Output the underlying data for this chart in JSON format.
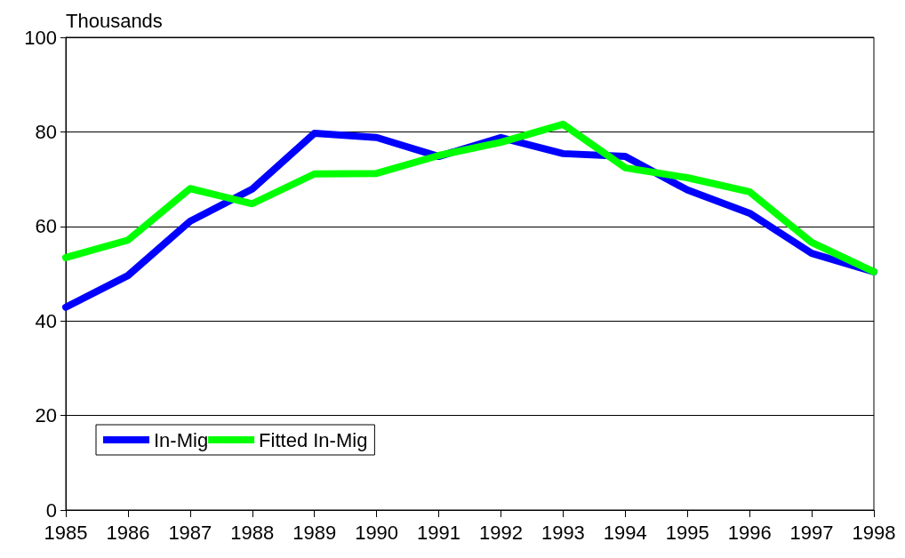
{
  "chart_data": {
    "type": "line",
    "ylabel": "Thousands",
    "categories": [
      "1985",
      "1986",
      "1987",
      "1988",
      "1989",
      "1990",
      "1991",
      "1992",
      "1993",
      "1994",
      "1995",
      "1996",
      "1997",
      "1998"
    ],
    "series": [
      {
        "name": "In-Mig",
        "color": "#0000ff",
        "values": [
          42.9,
          49.6,
          61.1,
          67.9,
          79.7,
          78.8,
          74.8,
          78.8,
          75.4,
          74.8,
          67.7,
          62.8,
          54.3,
          50.4
        ]
      },
      {
        "name": "Fitted In-Mig",
        "color": "#00ff00",
        "values": [
          53.4,
          57.1,
          68.0,
          64.8,
          71.1,
          71.2,
          75.0,
          77.8,
          81.6,
          72.4,
          70.3,
          67.3,
          56.6,
          50.4
        ]
      }
    ],
    "ylim": [
      0,
      100
    ],
    "yticks": [
      0,
      20,
      40,
      60,
      80,
      100
    ],
    "grid": "y",
    "legend": "bottom left",
    "marker": "none",
    "line_style": "solid"
  }
}
